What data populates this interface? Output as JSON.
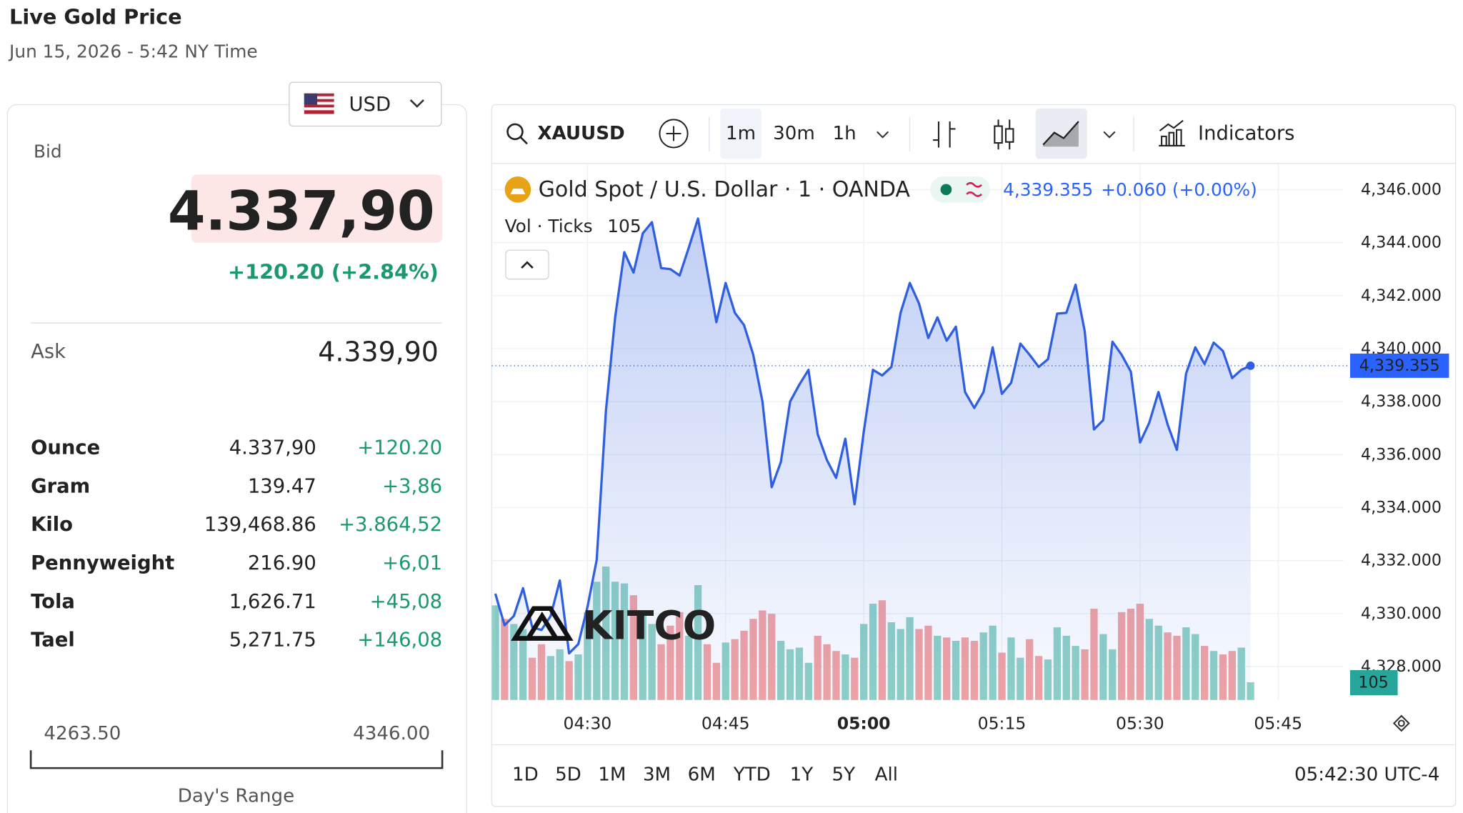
{
  "header": {
    "title": "Live Gold Price",
    "datetime": "Jun 15, 2026 - 5:42 NY Time"
  },
  "quote": {
    "currency": "USD",
    "bid_label": "Bid",
    "bid": "4.337,90",
    "change": "+120.20 (+2.84%)",
    "ask_label": "Ask",
    "ask": "4.339,90"
  },
  "units": {
    "rows": [
      [
        "Ounce",
        "4.337,90",
        "+120.20"
      ],
      [
        "Gram",
        "139.47",
        "+3,86"
      ],
      [
        "Kilo",
        "139,468.86",
        "+3.864,52"
      ],
      [
        "Pennyweight",
        "216.90",
        "+6,01"
      ],
      [
        "Tola",
        "1,626.71",
        "+45,08"
      ],
      [
        "Tael",
        "5,271.75",
        "+146,08"
      ]
    ]
  },
  "range": {
    "low": "4263.50",
    "high": "4346.00",
    "label": "Day's Range"
  },
  "toolbar": {
    "symbol": "XAUUSD",
    "intervals": [
      "1m",
      "30m",
      "1h"
    ],
    "indicators": "Indicators"
  },
  "periods": [
    "1D",
    "5D",
    "1M",
    "3M",
    "6M",
    "YTD",
    "1Y",
    "5Y",
    "All"
  ],
  "clock": "05:42:30 UTC-4",
  "watermark": "KITCO",
  "chart_data": {
    "type": "line",
    "title": "Gold Spot / U.S. Dollar · 1 · OANDA",
    "last_price": "4,339.355",
    "change": "+0.060 (+0.00%)",
    "volume_title": "Vol · Ticks",
    "volume_last": "105",
    "color": "#2f5fe0",
    "up_color": "#8fd1c6",
    "down_color": "#f2a3a3",
    "x": [
      260,
      261,
      262,
      263,
      264,
      265,
      266,
      267,
      268,
      269,
      270,
      271,
      272,
      273,
      274,
      275,
      276,
      277,
      278,
      279,
      280,
      281,
      282,
      283,
      284,
      285,
      286,
      287,
      288,
      289,
      290,
      291,
      292,
      293,
      294,
      295,
      296,
      297,
      298,
      299,
      300,
      301,
      302,
      303,
      304,
      305,
      306,
      307,
      308,
      309,
      310,
      311,
      312,
      313,
      314,
      315,
      316,
      317,
      318,
      319,
      320,
      321,
      322,
      323,
      324,
      325,
      326,
      327,
      328,
      329,
      330,
      331,
      332,
      333,
      334,
      335,
      336,
      337,
      338,
      339,
      340,
      341,
      342
    ],
    "values": [
      4330.75,
      4329.56,
      4329.91,
      4330.96,
      4329.49,
      4329.38,
      4329.91,
      4331.25,
      4328.5,
      4328.85,
      4330.26,
      4332.02,
      4337.65,
      4341.18,
      4343.64,
      4342.87,
      4344.35,
      4344.77,
      4343.04,
      4343.0,
      4342.76,
      4343.81,
      4344.91,
      4342.94,
      4341.0,
      4342.48,
      4341.35,
      4340.89,
      4339.77,
      4338.0,
      4334.77,
      4335.72,
      4338.0,
      4338.64,
      4339.2,
      4336.77,
      4335.79,
      4335.12,
      4336.6,
      4334.13,
      4336.88,
      4339.2,
      4338.99,
      4339.31,
      4341.35,
      4342.48,
      4341.7,
      4340.4,
      4341.18,
      4340.3,
      4340.83,
      4338.36,
      4337.76,
      4338.36,
      4340.05,
      4338.29,
      4338.71,
      4340.19,
      4339.77,
      4339.31,
      4339.6,
      4341.32,
      4341.35,
      4342.41,
      4340.65,
      4336.95,
      4337.3,
      4340.26,
      4339.77,
      4339.13,
      4336.46,
      4337.2,
      4338.36,
      4337.13,
      4336.18,
      4339.06,
      4340.05,
      4339.42,
      4340.23,
      4339.91,
      4338.89,
      4339.2,
      4339.355
    ],
    "volume": [
      560,
      480,
      450,
      420,
      250,
      330,
      260,
      300,
      230,
      270,
      520,
      700,
      790,
      700,
      690,
      620,
      500,
      450,
      330,
      440,
      520,
      380,
      680,
      330,
      220,
      340,
      360,
      410,
      480,
      530,
      510,
      350,
      300,
      310,
      220,
      380,
      330,
      290,
      270,
      250,
      450,
      570,
      590,
      460,
      420,
      490,
      420,
      440,
      380,
      370,
      350,
      370,
      350,
      400,
      440,
      280,
      370,
      250,
      360,
      260,
      240,
      430,
      380,
      320,
      300,
      540,
      390,
      300,
      520,
      540,
      570,
      480,
      440,
      400,
      380,
      430,
      390,
      320,
      290,
      270,
      290,
      310,
      105
    ],
    "xlim": [
      259.6,
      352.1
    ],
    "xticks": [
      {
        "value": 270,
        "label": "04:30"
      },
      {
        "value": 285,
        "label": "04:45"
      },
      {
        "value": 300,
        "label": "05:00"
      },
      {
        "value": 315,
        "label": "05:15"
      },
      {
        "value": 330,
        "label": "05:30"
      },
      {
        "value": 345,
        "label": "05:45"
      }
    ],
    "ylim": [
      4326.74,
      4346.99
    ],
    "yticks": [
      {
        "value": 4328,
        "label": "4,328.000"
      },
      {
        "value": 4330,
        "label": "4,330.000"
      },
      {
        "value": 4332,
        "label": "4,332.000"
      },
      {
        "value": 4334,
        "label": "4,334.000"
      },
      {
        "value": 4336,
        "label": "4,336.000"
      },
      {
        "value": 4338,
        "label": "4,338.000"
      },
      {
        "value": 4340,
        "label": "4,340.000"
      },
      {
        "value": 4342,
        "label": "4,342.000"
      },
      {
        "value": 4344,
        "label": "4,344.000"
      },
      {
        "value": 4346,
        "label": "4,346.000"
      }
    ],
    "grid": true
  }
}
